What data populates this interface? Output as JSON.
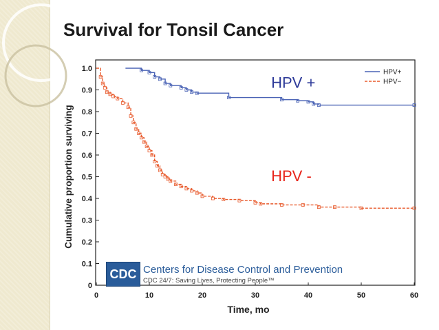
{
  "slide": {
    "title": "Survival for Tonsil Cancer"
  },
  "cdc": {
    "logo": "CDC",
    "name": "Centers for Disease Control and Prevention",
    "tagline": "CDC 24/7: Saving Lives, Protecting People™"
  },
  "chart_data": {
    "type": "line",
    "title": "",
    "xlabel": "Time, mo",
    "ylabel": "Cumulative proportion surviving",
    "xlim": [
      0,
      60
    ],
    "ylim": [
      0,
      1.0
    ],
    "xticks": [
      "0",
      "10",
      "20",
      "30",
      "40",
      "50",
      "60"
    ],
    "yticks": [
      "0",
      "0.1",
      "0.2",
      "0.3",
      "0.4",
      "0.5",
      "0.6",
      "0.7",
      "0.8",
      "0.9",
      "1.0"
    ],
    "legend": {
      "position": "top-right",
      "entries": [
        "HPV+",
        "HPV−"
      ]
    },
    "annotations": [
      {
        "text": "HPV +",
        "x": 33,
        "y": 0.91,
        "color": "#2d3a99"
      },
      {
        "text": "HPV -",
        "x": 33,
        "y": 0.48,
        "color": "#e8251b"
      }
    ],
    "series": [
      {
        "name": "HPV+",
        "color": "#4a63b5",
        "dash": "solid",
        "x": [
          5.5,
          8.5,
          10,
          11,
          12,
          13,
          14,
          16,
          17,
          18,
          19,
          25,
          35,
          38,
          40,
          41,
          42,
          60
        ],
        "y": [
          1.0,
          0.99,
          0.98,
          0.96,
          0.95,
          0.93,
          0.92,
          0.91,
          0.9,
          0.89,
          0.885,
          0.865,
          0.855,
          0.85,
          0.845,
          0.835,
          0.83,
          0.83
        ]
      },
      {
        "name": "HPV−",
        "color": "#e85a2c",
        "dash": "dashed",
        "x": [
          0,
          0.8,
          1.2,
          1.6,
          2.0,
          2.6,
          3.2,
          4.0,
          5.0,
          6.0,
          6.5,
          7.0,
          7.5,
          8.0,
          8.5,
          9.0,
          9.5,
          10.0,
          10.5,
          11.0,
          11.5,
          12.0,
          12.5,
          13.0,
          13.5,
          14.0,
          15.0,
          16.0,
          17.0,
          18.0,
          19.0,
          20.0,
          22.0,
          24.0,
          27.0,
          30.0,
          31.0,
          35.0,
          39.0,
          42.0,
          45.0,
          50.0,
          60.0
        ],
        "y": [
          1.0,
          0.96,
          0.93,
          0.91,
          0.89,
          0.88,
          0.87,
          0.86,
          0.84,
          0.82,
          0.78,
          0.75,
          0.72,
          0.7,
          0.68,
          0.66,
          0.64,
          0.62,
          0.6,
          0.57,
          0.55,
          0.53,
          0.51,
          0.5,
          0.49,
          0.48,
          0.465,
          0.455,
          0.445,
          0.435,
          0.425,
          0.41,
          0.4,
          0.395,
          0.39,
          0.38,
          0.375,
          0.37,
          0.37,
          0.36,
          0.36,
          0.355,
          0.355
        ]
      }
    ]
  }
}
